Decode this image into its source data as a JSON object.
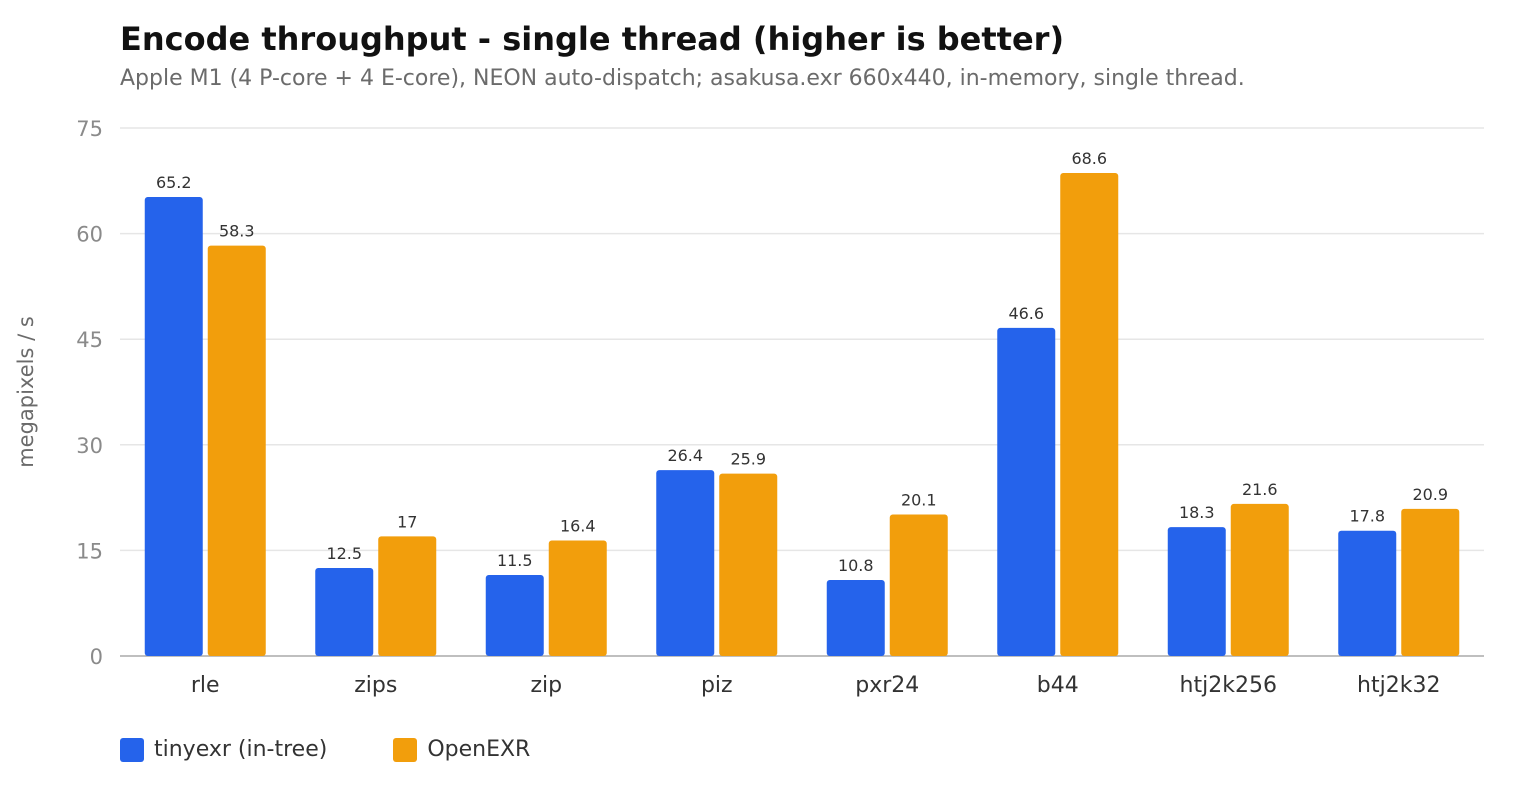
{
  "chart_data": {
    "type": "bar",
    "title": "Encode throughput - single thread (higher is better)",
    "subtitle": "Apple M1 (4 P-core + 4 E-core), NEON auto-dispatch; asakusa.exr 660x440, in-memory, single thread.",
    "xlabel": "",
    "ylabel": "megapixels / s",
    "ylim": [
      0,
      75
    ],
    "yticks": [
      0,
      15,
      30,
      45,
      60,
      75
    ],
    "grid": true,
    "legend_position": "bottom-left",
    "categories": [
      "rle",
      "zips",
      "zip",
      "piz",
      "pxr24",
      "b44",
      "htj2k256",
      "htj2k32"
    ],
    "series": [
      {
        "name": "tinyexr (in-tree)",
        "color": "#2563eb",
        "values": [
          65.2,
          12.5,
          11.5,
          26.4,
          10.8,
          46.6,
          18.3,
          17.8
        ],
        "labels": [
          "65.2",
          "12.5",
          "11.5",
          "26.4",
          "10.8",
          "46.6",
          "18.3",
          "17.8"
        ]
      },
      {
        "name": "OpenEXR",
        "color": "#f29e0c",
        "values": [
          58.3,
          17,
          16.4,
          25.9,
          20.1,
          68.6,
          21.6,
          20.9
        ],
        "labels": [
          "58.3",
          "17",
          "16.4",
          "25.9",
          "20.1",
          "68.6",
          "21.6",
          "20.9"
        ]
      }
    ]
  }
}
